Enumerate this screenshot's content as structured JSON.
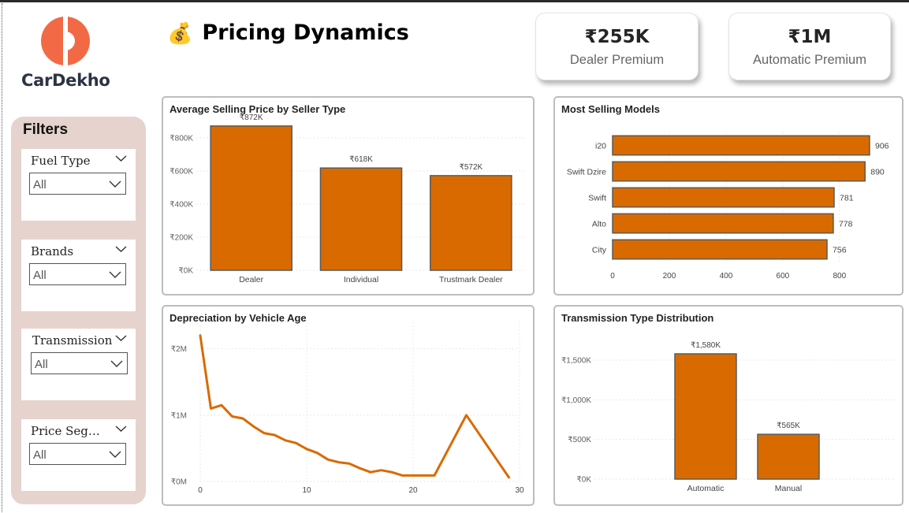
{
  "brand": {
    "name": "CarDekho",
    "logo_color": "#f26a45"
  },
  "page_title": "Pricing Dynamics",
  "title_icon": "money-bag-icon",
  "kpis": [
    {
      "value": "₹255K",
      "label": "Dealer Premium"
    },
    {
      "value": "₹1M",
      "label": "Automatic Premium"
    }
  ],
  "filters": {
    "title": "Filters",
    "slicers": [
      {
        "label": "Fuel Type",
        "value": "All"
      },
      {
        "label": "Brands",
        "value": "All"
      },
      {
        "label": "Transmission",
        "value": "All"
      },
      {
        "label": "Price Seg…",
        "value": "All"
      }
    ]
  },
  "colors": {
    "bar": "#d96a00",
    "bar_border": "#5a5a5a",
    "line": "#d96a00",
    "filter_bg": "#e6d3ce"
  },
  "chart_data": [
    {
      "type": "bar",
      "title": "Average Selling Price by Seller Type",
      "categories": [
        "Dealer",
        "Individual",
        "Trustmark Dealer"
      ],
      "values": [
        872,
        618,
        572
      ],
      "data_labels": [
        "₹872K",
        "₹618K",
        "₹572K"
      ],
      "y_ticks": [
        0,
        200,
        400,
        600,
        800
      ],
      "y_tick_labels": [
        "₹0K",
        "₹200K",
        "₹400K",
        "₹600K",
        "₹800K"
      ],
      "ylim": [
        0,
        900
      ],
      "grid": true
    },
    {
      "type": "bar",
      "orientation": "horizontal",
      "title": "Most Selling Models",
      "categories": [
        "i20",
        "Swift Dzire",
        "Swift",
        "Alto",
        "City"
      ],
      "values": [
        906,
        890,
        781,
        778,
        756
      ],
      "x_ticks": [
        0,
        200,
        400,
        600,
        800
      ],
      "x_tick_labels": [
        "0",
        "200",
        "400",
        "600",
        "800"
      ],
      "xlim": [
        0,
        906
      ],
      "grid": true
    },
    {
      "type": "line",
      "title": "Depreciation by Vehicle Age",
      "x": [
        0,
        1,
        2,
        3,
        4,
        5,
        6,
        7,
        8,
        9,
        10,
        11,
        12,
        13,
        14,
        15,
        16,
        17,
        18,
        19,
        20,
        21,
        22,
        25,
        29
      ],
      "y": [
        2.2,
        1.1,
        1.15,
        0.98,
        0.95,
        0.83,
        0.73,
        0.7,
        0.62,
        0.58,
        0.49,
        0.43,
        0.33,
        0.29,
        0.27,
        0.2,
        0.14,
        0.17,
        0.14,
        0.09,
        0.09,
        0.09,
        0.09,
        1.0,
        0.06
      ],
      "x_ticks": [
        0,
        10,
        20,
        30
      ],
      "x_tick_labels": [
        "0",
        "10",
        "20",
        "30"
      ],
      "y_ticks": [
        0,
        1,
        2
      ],
      "y_tick_labels": [
        "₹0M",
        "₹1M",
        "₹2M"
      ],
      "xlim": [
        0,
        30
      ],
      "ylim": [
        0,
        2.4
      ],
      "grid": true
    },
    {
      "type": "bar",
      "title": "Transmission Type Distribution",
      "categories": [
        "Automatic",
        "Manual"
      ],
      "values": [
        1580,
        565
      ],
      "data_labels": [
        "₹1,580K",
        "₹565K"
      ],
      "y_ticks": [
        0,
        500,
        1000,
        1500
      ],
      "y_tick_labels": [
        "₹0K",
        "₹500K",
        "₹1,000K",
        "₹1,500K"
      ],
      "ylim": [
        0,
        1580
      ],
      "grid": true
    }
  ]
}
